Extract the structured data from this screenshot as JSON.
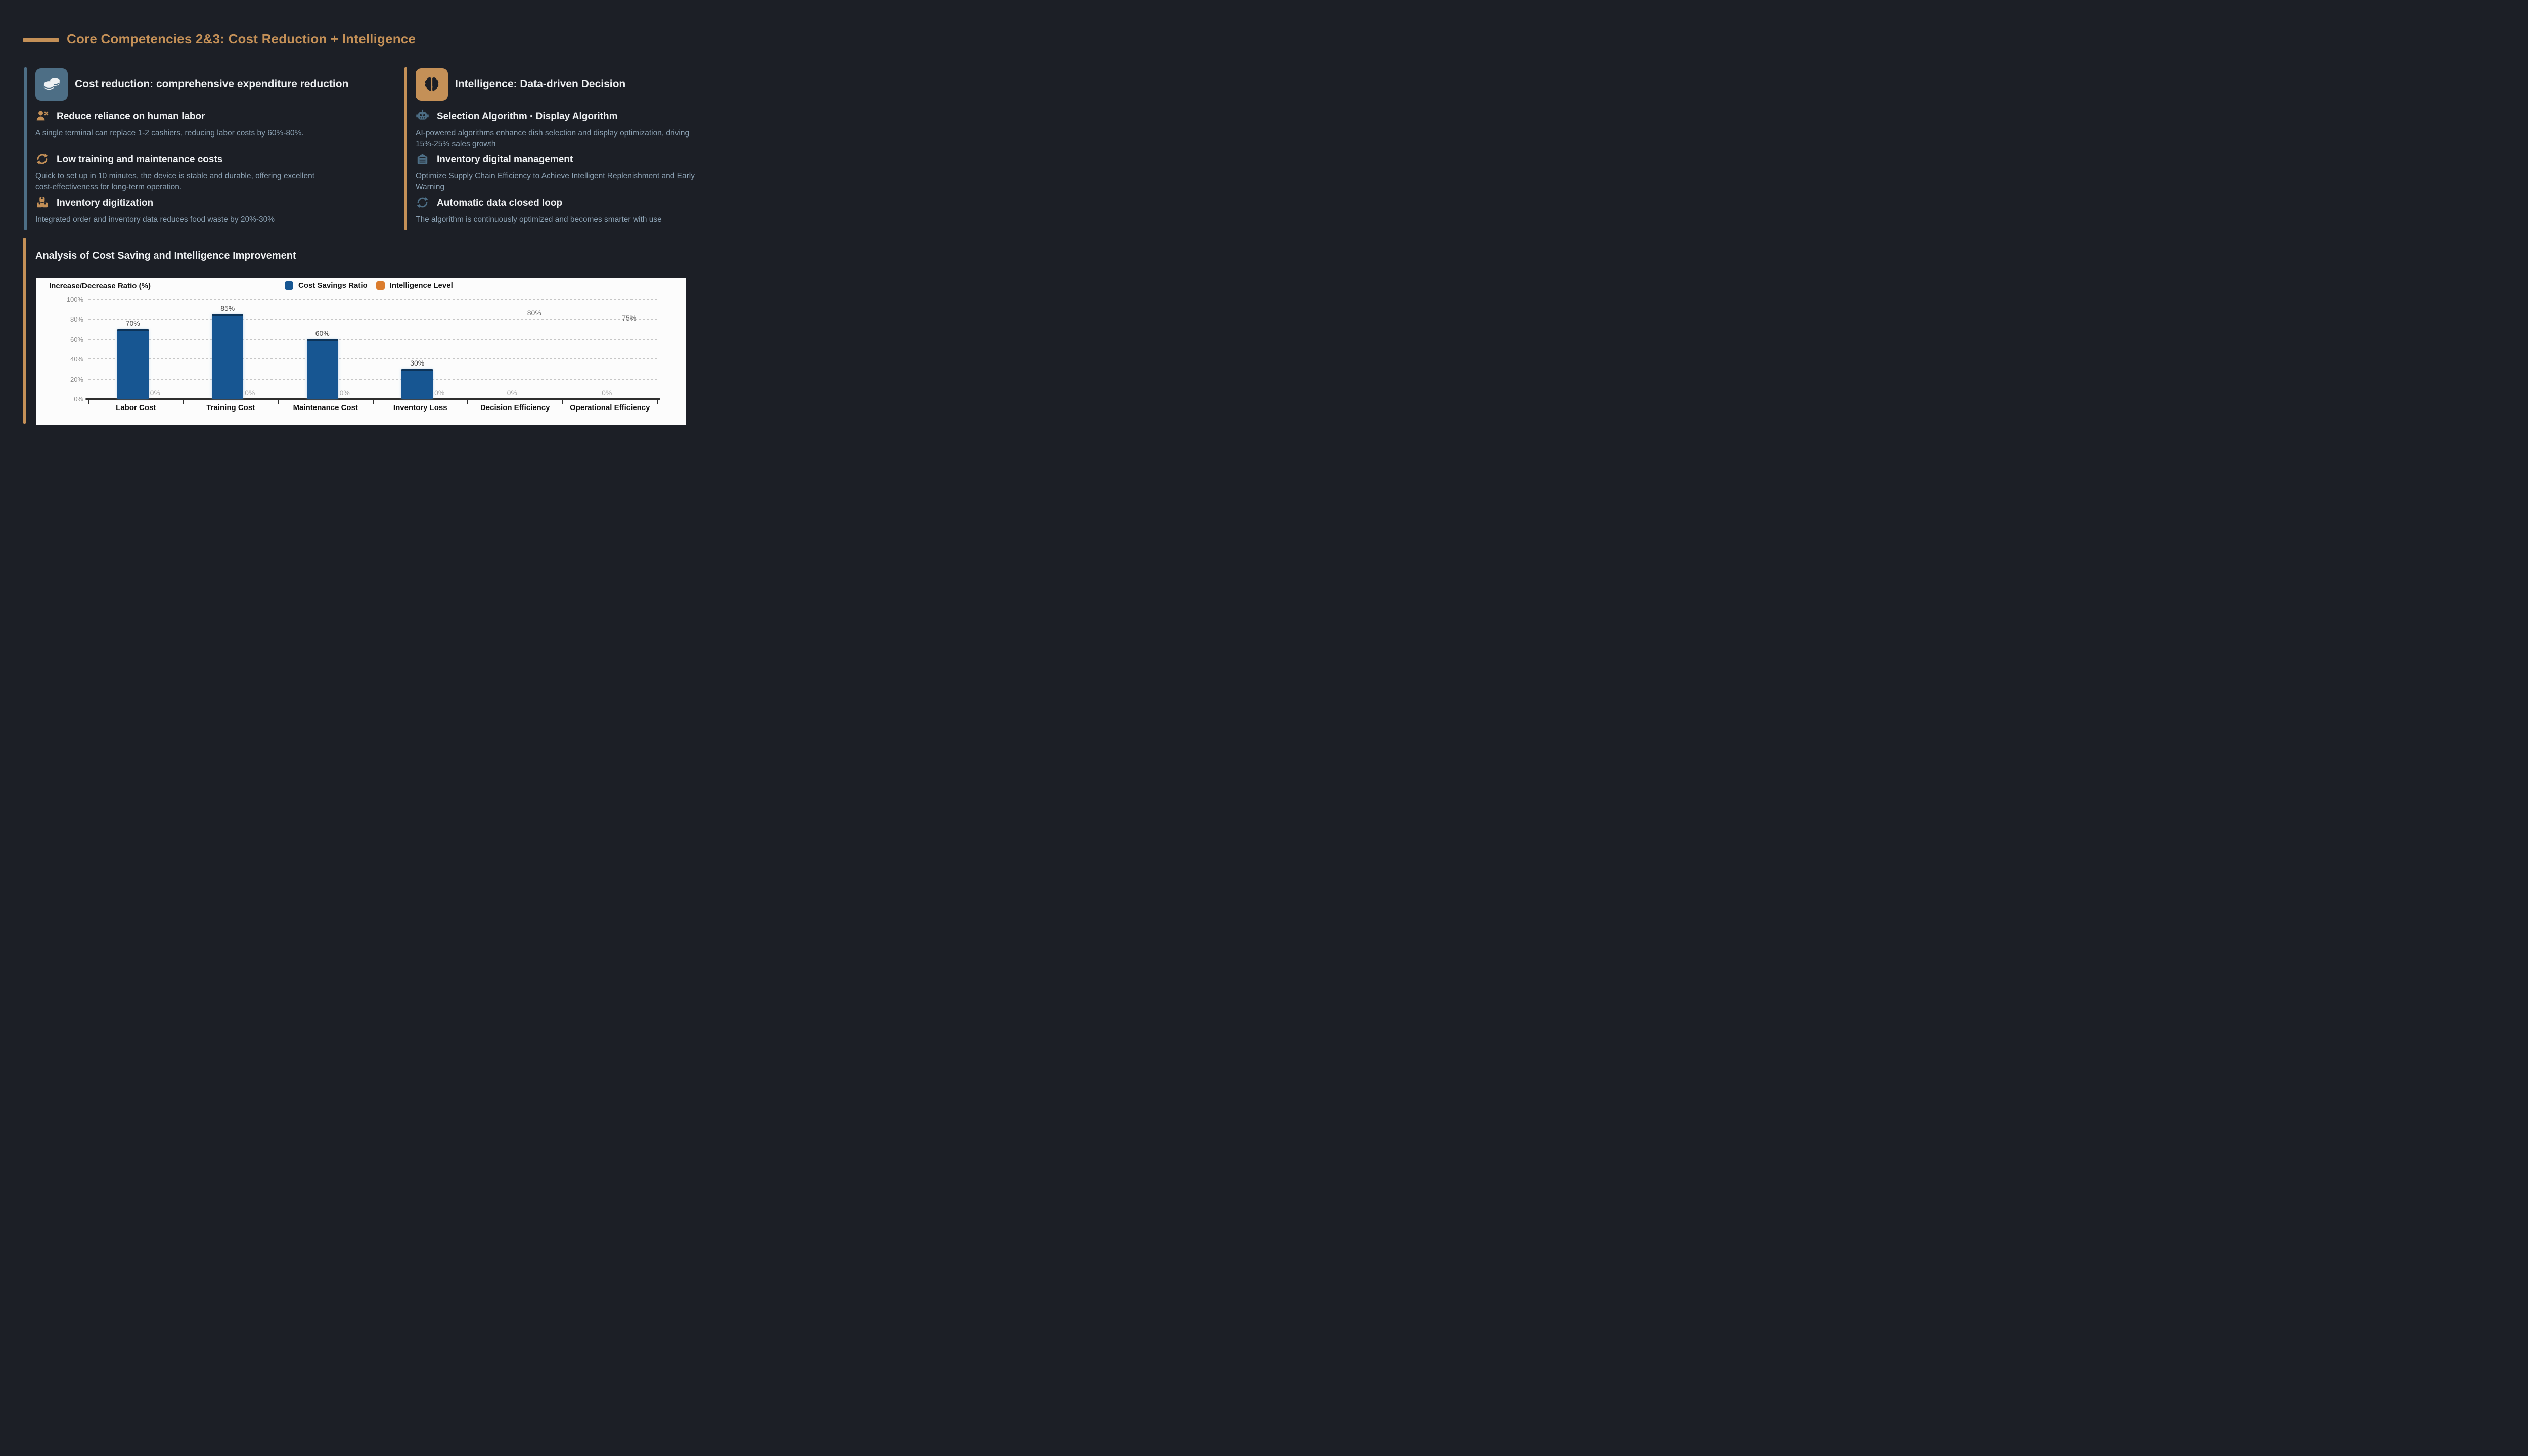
{
  "page": {
    "title": "Core Competencies 2&3: Cost Reduction + Intelligence"
  },
  "colors": {
    "background": "#1c1f26",
    "accent_gold": "#c49057",
    "steel_blue": "#4d6e85",
    "heading": "#edeff1",
    "body_text": "#8ba1b3",
    "chart_bg": "#fcfcfc",
    "bar_blue": "#175692",
    "bar_orange": "#db7c2d"
  },
  "columns": {
    "left": {
      "header": {
        "title": "Cost reduction: comprehensive expenditure reduction",
        "icon": "coins-icon"
      },
      "items": [
        {
          "icon": "person-x-icon",
          "title": "Reduce reliance on human labor",
          "body": "A single terminal can replace 1-2 cashiers, reducing labor costs by 60%-80%."
        },
        {
          "icon": "refresh-icon",
          "title": "Low training and maintenance costs",
          "body": "Quick to set up in 10 minutes, the device is stable and durable, offering excellent\ncost-effectiveness for long-term operation."
        },
        {
          "icon": "boxes-icon",
          "title": "Inventory digitization",
          "body": "Integrated order and inventory data reduces food waste by 20%-30%"
        }
      ]
    },
    "right": {
      "header": {
        "title": "Intelligence: Data-driven Decision",
        "icon": "brain-icon"
      },
      "items": [
        {
          "icon": "robot-icon",
          "title": "Selection Algorithm · Display Algorithm",
          "body": "AI-powered algorithms enhance dish selection and display optimization, driving\n15%-25% sales growth"
        },
        {
          "icon": "warehouse-icon",
          "title": "Inventory digital management",
          "body": "Optimize Supply Chain Efficiency to Achieve Intelligent Replenishment and Early\nWarning"
        },
        {
          "icon": "refresh-icon",
          "title": "Automatic data closed loop",
          "body": "The algorithm is continuously optimized and becomes smarter with use"
        }
      ]
    }
  },
  "analysis": {
    "title": "Analysis of Cost Saving and Intelligence Improvement"
  },
  "chart_data": {
    "type": "bar",
    "axis_title": "Increase/Decrease Ratio (%)",
    "categories": [
      "Labor Cost",
      "Training Cost",
      "Maintenance Cost",
      "Inventory Loss",
      "Decision Efficiency",
      "Operational Efficiency"
    ],
    "series": [
      {
        "name": "Cost Savings Ratio",
        "color": "#175692",
        "values": [
          70,
          85,
          60,
          30,
          0,
          0
        ],
        "bars_visible": true
      },
      {
        "name": "Intelligence Level",
        "color": "#db7c2d",
        "values": [
          0,
          0,
          0,
          0,
          80,
          75
        ],
        "bars_visible": false
      }
    ],
    "ylim": [
      0,
      100
    ],
    "ytick_step": 20,
    "ytick_suffix": "%",
    "grid": true,
    "legend_position": "top",
    "background": "#fcfcfc"
  }
}
